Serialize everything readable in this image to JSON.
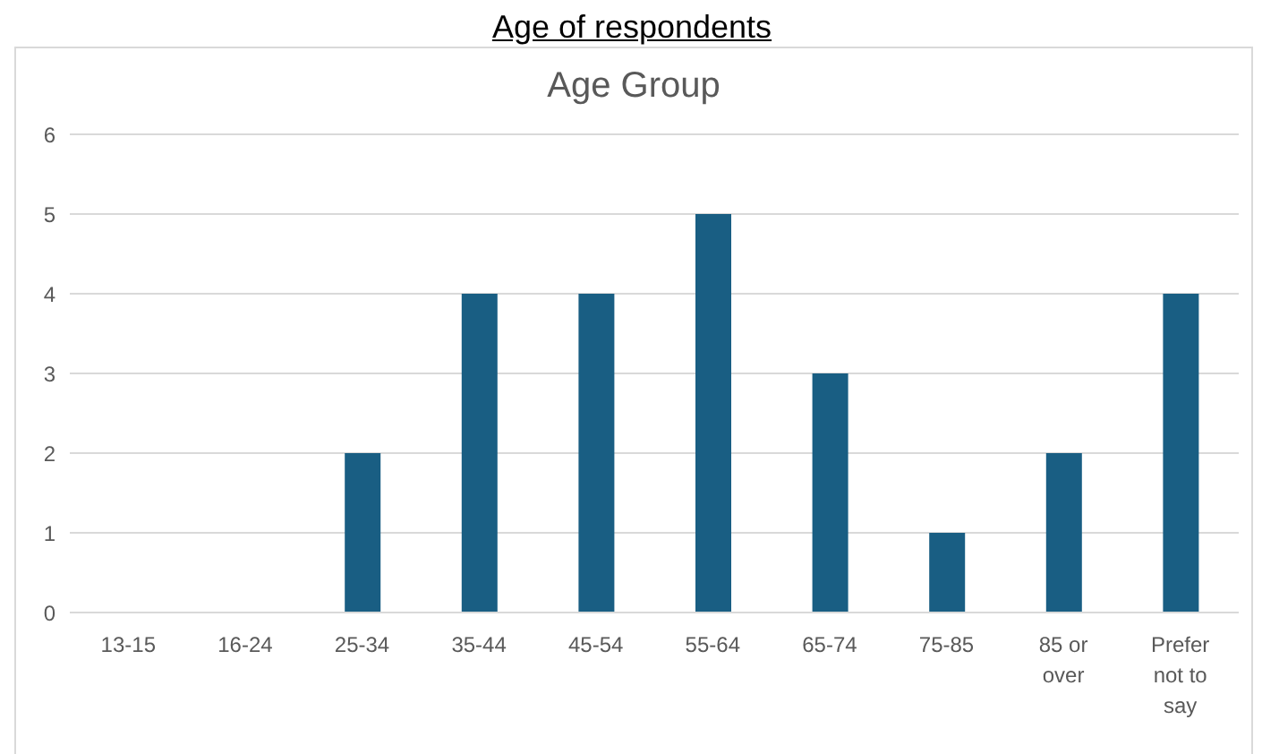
{
  "chart_data": {
    "type": "bar",
    "title": "Age Group",
    "annotations": [
      "Age of respondents"
    ],
    "categories": [
      "13-15",
      "16-24",
      "25-34",
      "35-44",
      "45-54",
      "55-64",
      "65-74",
      "75-85",
      "85 or over",
      "Prefer not to say"
    ],
    "values": [
      0,
      0,
      2,
      4,
      4,
      5,
      3,
      1,
      2,
      4
    ],
    "color": "#195e83",
    "ylim": [
      0,
      6
    ],
    "yticks": [
      0,
      1,
      2,
      3,
      4,
      5,
      6
    ],
    "grid": "y",
    "legend": false
  }
}
